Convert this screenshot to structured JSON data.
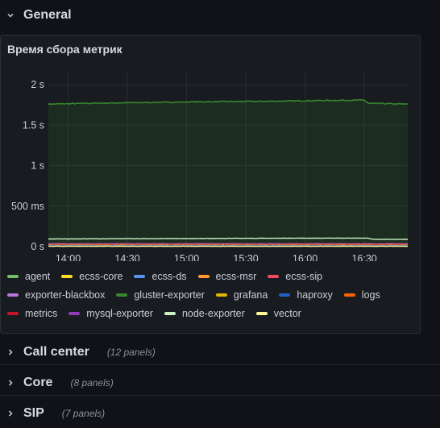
{
  "rows": {
    "general": {
      "title": "General",
      "expanded": true
    },
    "call_center": {
      "title": "Call center",
      "count": "(12 panels)"
    },
    "core": {
      "title": "Core",
      "count": "(8 panels)"
    },
    "sip": {
      "title": "SIP",
      "count": "(7 panels)"
    }
  },
  "panel": {
    "title": "Время сбора метрик"
  },
  "chart_data": {
    "type": "line",
    "title": "Время сбора метрик",
    "y_tick_labels": [
      "0 s",
      "500 ms",
      "1 s",
      "1.5 s",
      "2 s"
    ],
    "y_tick_values": [
      0,
      0.5,
      1,
      1.5,
      2
    ],
    "x_tick_labels": [
      "14:00",
      "14:30",
      "15:00",
      "15:30",
      "16:00",
      "16:30"
    ],
    "x_tick_minutes": [
      840,
      870,
      900,
      930,
      960,
      990
    ],
    "x_range_minutes": [
      830,
      1012
    ],
    "ylim": [
      0,
      2.15
    ],
    "grid": true,
    "legend_placement": "bottom",
    "series": [
      {
        "name": "agent",
        "color": "#73bf69",
        "level": 0.02
      },
      {
        "name": "ecss-core",
        "color": "#fade2a",
        "level": 0.015
      },
      {
        "name": "ecss-ds",
        "color": "#5794f2",
        "level": 0.01
      },
      {
        "name": "ecss-msr",
        "color": "#ff9830",
        "level": 0.02
      },
      {
        "name": "ecss-sip",
        "color": "#f2495c",
        "level": 0.03
      },
      {
        "name": "exporter-blackbox",
        "color": "#b877d9",
        "level": 0.035
      },
      {
        "name": "gluster-exporter",
        "color": "#37872d",
        "level": 1.77,
        "fill": true,
        "points": [
          [
            830,
            1.76
          ],
          [
            850,
            1.77
          ],
          [
            880,
            1.78
          ],
          [
            910,
            1.79
          ],
          [
            940,
            1.795
          ],
          [
            970,
            1.805
          ],
          [
            990,
            1.81
          ],
          [
            992,
            1.77
          ],
          [
            1012,
            1.76
          ]
        ]
      },
      {
        "name": "grafana",
        "color": "#e0b400",
        "level": 0.01
      },
      {
        "name": "haproxy",
        "color": "#1f60c4",
        "level": 0.01
      },
      {
        "name": "logs",
        "color": "#fa6400",
        "level": 0.015
      },
      {
        "name": "metrics",
        "color": "#c4162a",
        "level": 0.02
      },
      {
        "name": "mysql-exporter",
        "color": "#8f3bb8",
        "level": 0.025
      },
      {
        "name": "node-exporter",
        "color": "#c8f2c2",
        "level": 0.1,
        "points": [
          [
            830,
            0.095
          ],
          [
            900,
            0.1
          ],
          [
            960,
            0.105
          ],
          [
            992,
            0.105
          ],
          [
            994,
            0.09
          ],
          [
            1012,
            0.09
          ]
        ]
      },
      {
        "name": "vector",
        "color": "#fff899",
        "level": 0.005
      }
    ]
  }
}
